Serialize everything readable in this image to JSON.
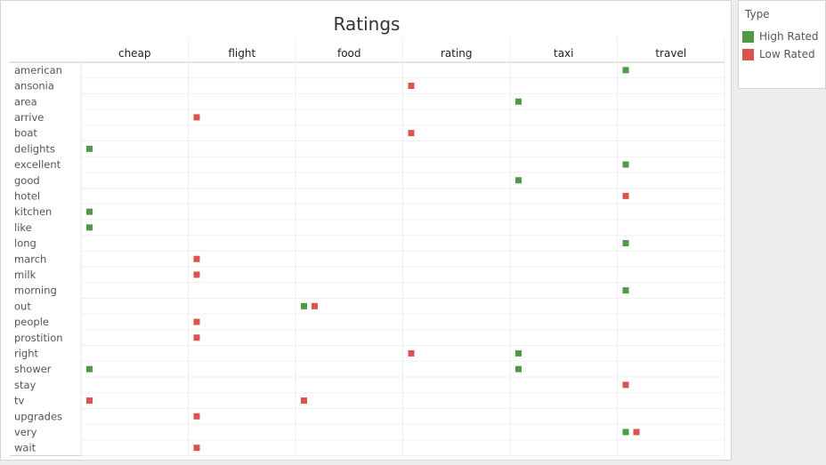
{
  "chart_data": {
    "type": "scatter",
    "title": "Ratings",
    "columns": [
      "cheap",
      "flight",
      "food",
      "rating",
      "taxi",
      "travel"
    ],
    "rows": [
      "american",
      "ansonia",
      "area",
      "arrive",
      "boat",
      "delights",
      "excellent",
      "good",
      "hotel",
      "kitchen",
      "like",
      "long",
      "march",
      "milk",
      "morning",
      "out",
      "people",
      "prostition",
      "right",
      "shower",
      "stay",
      "tv",
      "upgrades",
      "very",
      "wait"
    ],
    "legend": {
      "title": "Type",
      "position": "right",
      "entries": [
        {
          "name": "High Rated",
          "color": "#4e9a47"
        },
        {
          "name": "Low Rated",
          "color": "#d9534f"
        }
      ]
    },
    "points": [
      {
        "row": "american",
        "column": "travel",
        "type": "High Rated"
      },
      {
        "row": "ansonia",
        "column": "rating",
        "type": "Low Rated"
      },
      {
        "row": "area",
        "column": "taxi",
        "type": "High Rated"
      },
      {
        "row": "arrive",
        "column": "flight",
        "type": "Low Rated"
      },
      {
        "row": "boat",
        "column": "rating",
        "type": "Low Rated"
      },
      {
        "row": "delights",
        "column": "cheap",
        "type": "High Rated"
      },
      {
        "row": "excellent",
        "column": "travel",
        "type": "High Rated"
      },
      {
        "row": "good",
        "column": "taxi",
        "type": "High Rated"
      },
      {
        "row": "hotel",
        "column": "travel",
        "type": "Low Rated"
      },
      {
        "row": "kitchen",
        "column": "cheap",
        "type": "High Rated"
      },
      {
        "row": "like",
        "column": "cheap",
        "type": "High Rated"
      },
      {
        "row": "long",
        "column": "travel",
        "type": "High Rated"
      },
      {
        "row": "march",
        "column": "flight",
        "type": "Low Rated"
      },
      {
        "row": "milk",
        "column": "flight",
        "type": "Low Rated"
      },
      {
        "row": "morning",
        "column": "travel",
        "type": "High Rated"
      },
      {
        "row": "out",
        "column": "food",
        "type": "High Rated"
      },
      {
        "row": "out",
        "column": "food",
        "type": "Low Rated"
      },
      {
        "row": "people",
        "column": "flight",
        "type": "Low Rated"
      },
      {
        "row": "prostition",
        "column": "flight",
        "type": "Low Rated"
      },
      {
        "row": "right",
        "column": "rating",
        "type": "Low Rated"
      },
      {
        "row": "right",
        "column": "taxi",
        "type": "High Rated"
      },
      {
        "row": "shower",
        "column": "cheap",
        "type": "High Rated"
      },
      {
        "row": "shower",
        "column": "taxi",
        "type": "High Rated"
      },
      {
        "row": "stay",
        "column": "travel",
        "type": "Low Rated"
      },
      {
        "row": "tv",
        "column": "cheap",
        "type": "Low Rated"
      },
      {
        "row": "tv",
        "column": "food",
        "type": "Low Rated"
      },
      {
        "row": "upgrades",
        "column": "flight",
        "type": "Low Rated"
      },
      {
        "row": "very",
        "column": "travel",
        "type": "High Rated"
      },
      {
        "row": "very",
        "column": "travel",
        "type": "Low Rated"
      },
      {
        "row": "wait",
        "column": "flight",
        "type": "Low Rated"
      }
    ],
    "grid": true
  }
}
